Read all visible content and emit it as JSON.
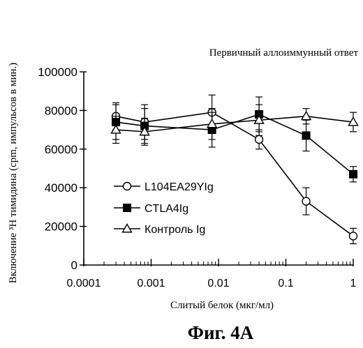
{
  "figure_label": "Фиг. 4A",
  "chart_data": {
    "type": "line",
    "title": "Первичный аллоиммунный ответ",
    "xlabel": "Слитый белок (мкг/мл)",
    "ylabel": "Включение ³H тимидина (cpm, импульсов в мин.)",
    "x_scale": "log",
    "xlim": [
      0.0001,
      1
    ],
    "ylim": [
      0,
      100000
    ],
    "x_ticks": [
      0.0001,
      0.001,
      0.01,
      0.1,
      1
    ],
    "x_tick_labels": [
      "0.0001",
      "0.001",
      "0.01",
      "0.1",
      "1"
    ],
    "y_ticks": [
      0,
      20000,
      40000,
      60000,
      80000,
      100000
    ],
    "y_tick_labels": [
      "0",
      "20000",
      "40000",
      "60000",
      "80000",
      "100000"
    ],
    "grid": false,
    "legend_position": "left-middle",
    "series": [
      {
        "name": "L104EA29YIg",
        "marker": "circle-open",
        "x": [
          0.0003,
          0.0008,
          0.008,
          0.04,
          0.2,
          1
        ],
        "y": [
          77000,
          74000,
          79000,
          65000,
          33000,
          15000
        ],
        "err": [
          7000,
          9000,
          9000,
          5000,
          7000,
          4000
        ]
      },
      {
        "name": "CTLA4Ig",
        "marker": "square-filled",
        "x": [
          0.0003,
          0.0008,
          0.008,
          0.04,
          0.2,
          1
        ],
        "y": [
          74000,
          72000,
          70000,
          78000,
          67000,
          47000
        ],
        "err": [
          9000,
          9000,
          9000,
          9000,
          8000,
          4000
        ]
      },
      {
        "name": "Контроль Ig",
        "marker": "triangle-open",
        "x": [
          0.0003,
          0.0008,
          0.008,
          0.04,
          0.2,
          1
        ],
        "y": [
          70000,
          69000,
          73000,
          75000,
          77000,
          74000
        ],
        "err": [
          7000,
          7000,
          8000,
          8000,
          4000,
          5000
        ]
      }
    ]
  }
}
